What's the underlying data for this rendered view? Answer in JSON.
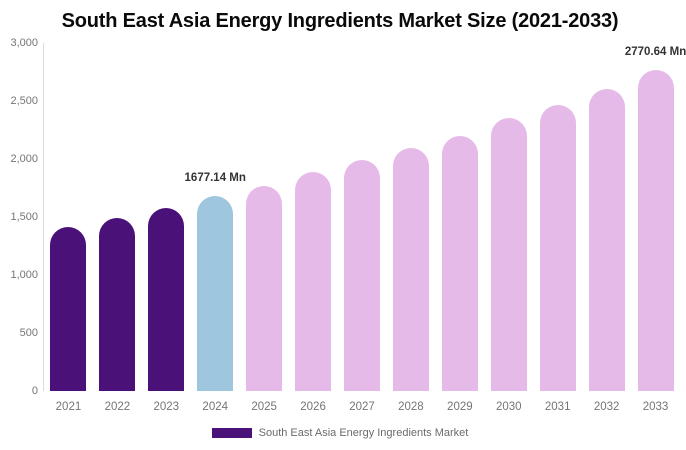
{
  "chart_data": {
    "type": "bar",
    "title": "South East Asia Energy Ingredients Market Size (2021-2033)",
    "categories": [
      "2021",
      "2022",
      "2023",
      "2024",
      "2025",
      "2026",
      "2027",
      "2028",
      "2029",
      "2030",
      "2031",
      "2032",
      "2033"
    ],
    "values": [
      1415,
      1490,
      1580,
      1677.14,
      1765,
      1885,
      1990,
      2095,
      2195,
      2350,
      2465,
      2600,
      2770.64
    ],
    "unit": "Mn",
    "bar_colors": [
      "#4A1178",
      "#4A1178",
      "#4A1178",
      "#9EC6DE",
      "#E6BAE8",
      "#E6BAE8",
      "#E6BAE8",
      "#E6BAE8",
      "#E6BAE8",
      "#E6BAE8",
      "#E6BAE8",
      "#E6BAE8",
      "#E6BAE8"
    ],
    "annotations": [
      {
        "category": "2024",
        "label": "1677.14 Mn"
      },
      {
        "category": "2033",
        "label": "2770.64 Mn"
      }
    ],
    "ylim": [
      0,
      3000
    ],
    "yticks": {
      "values": [
        0,
        500,
        1000,
        1500,
        2000,
        2500,
        3000
      ],
      "labels": [
        "0",
        "500",
        "1,000",
        "1,500",
        "2,000",
        "2,500",
        "3,000"
      ]
    },
    "xlabel": "",
    "ylabel": "",
    "grid": false,
    "legend": {
      "position": "bottom",
      "items": [
        {
          "label": "South East Asia Energy Ingredients Market",
          "color": "#4A1178"
        }
      ]
    },
    "colors": {
      "historical_bar": "#4A1178",
      "current_year_bar": "#9EC6DE",
      "forecast_bar": "#E6BAE8",
      "axis_line": "#DCDCDC",
      "tick_text": "#757575",
      "annotation_text": "#333333",
      "title_text": "#0A0A0A"
    }
  }
}
